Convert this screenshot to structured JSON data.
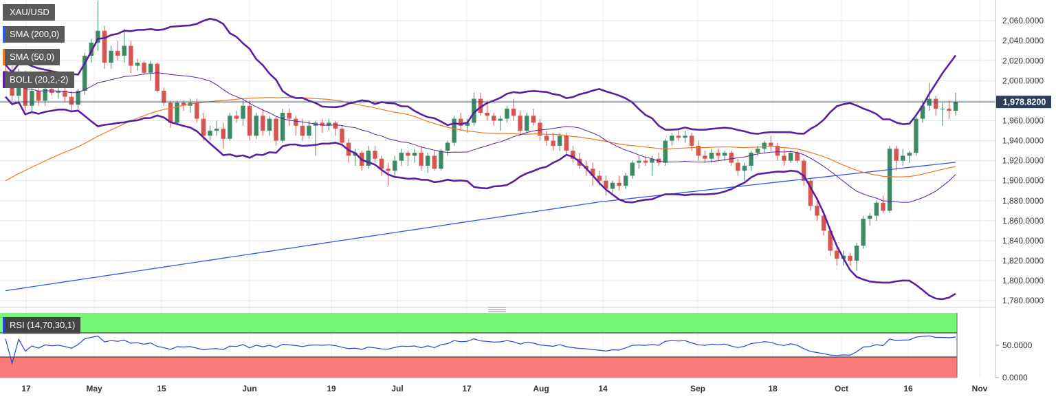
{
  "chart_data": {
    "type": "candlestick",
    "symbol": "XAU/USD",
    "last_price": "1,978.8200",
    "indicators": {
      "sma200": {
        "label": "SMA (200,0)",
        "color": "#3355ee"
      },
      "sma50": {
        "label": "SMA (50,0)",
        "color": "#ee7722"
      },
      "boll": {
        "label": "BOLL (20,2,-2)",
        "color": "#5a1fa0"
      }
    },
    "rsi": {
      "label": "RSI (14,70,30,1)",
      "color": "#2244dd",
      "overbought": 70,
      "oversold": 30,
      "y_ticks": [
        "50.0000",
        "0.0000"
      ]
    },
    "y_ticks": [
      "2,060.0000",
      "2,040.0000",
      "2,020.0000",
      "2,000.0000",
      "1,980.0000",
      "1,960.0000",
      "1,940.0000",
      "1,920.0000",
      "1,900.0000",
      "1,880.0000",
      "1,860.0000",
      "1,840.0000",
      "1,820.0000",
      "1,800.0000",
      "1,780.0000"
    ],
    "x_ticks": [
      "17",
      "May",
      "15",
      "Jun",
      "19",
      "Jul",
      "17",
      "Aug",
      "14",
      "Sep",
      "18",
      "Oct",
      "16",
      "Nov"
    ],
    "ylim": [
      1776,
      2078
    ],
    "candles": [
      {
        "o": 2010,
        "h": 2020,
        "l": 1995,
        "c": 2000
      },
      {
        "o": 2000,
        "h": 2015,
        "l": 1980,
        "c": 1985
      },
      {
        "o": 1985,
        "h": 2012,
        "l": 1978,
        "c": 2008
      },
      {
        "o": 2008,
        "h": 2010,
        "l": 1970,
        "c": 1975
      },
      {
        "o": 1975,
        "h": 1995,
        "l": 1968,
        "c": 1990
      },
      {
        "o": 1990,
        "h": 2000,
        "l": 1975,
        "c": 1980
      },
      {
        "o": 1980,
        "h": 1998,
        "l": 1975,
        "c": 1992
      },
      {
        "o": 1992,
        "h": 2005,
        "l": 1985,
        "c": 1988
      },
      {
        "o": 1988,
        "h": 1995,
        "l": 1982,
        "c": 1990
      },
      {
        "o": 1990,
        "h": 2000,
        "l": 1978,
        "c": 1984
      },
      {
        "o": 1984,
        "h": 1990,
        "l": 1970,
        "c": 1976
      },
      {
        "o": 1976,
        "h": 1992,
        "l": 1972,
        "c": 1990
      },
      {
        "o": 1990,
        "h": 2028,
        "l": 1986,
        "c": 2025
      },
      {
        "o": 2025,
        "h": 2042,
        "l": 2018,
        "c": 2038
      },
      {
        "o": 2038,
        "h": 2080,
        "l": 2030,
        "c": 2050
      },
      {
        "o": 2050,
        "h": 2055,
        "l": 2012,
        "c": 2018
      },
      {
        "o": 2018,
        "h": 2035,
        "l": 2012,
        "c": 2030
      },
      {
        "o": 2030,
        "h": 2040,
        "l": 2020,
        "c": 2025
      },
      {
        "o": 2025,
        "h": 2052,
        "l": 2018,
        "c": 2035
      },
      {
        "o": 2035,
        "h": 2040,
        "l": 2008,
        "c": 2015
      },
      {
        "o": 2015,
        "h": 2022,
        "l": 2010,
        "c": 2018
      },
      {
        "o": 2018,
        "h": 2020,
        "l": 2006,
        "c": 2008
      },
      {
        "o": 2008,
        "h": 2020,
        "l": 2000,
        "c": 2017
      },
      {
        "o": 2017,
        "h": 2018,
        "l": 1988,
        "c": 1990
      },
      {
        "o": 1990,
        "h": 1993,
        "l": 1975,
        "c": 1978
      },
      {
        "o": 1978,
        "h": 1980,
        "l": 1953,
        "c": 1958
      },
      {
        "o": 1958,
        "h": 1980,
        "l": 1955,
        "c": 1978
      },
      {
        "o": 1978,
        "h": 1980,
        "l": 1970,
        "c": 1975
      },
      {
        "o": 1975,
        "h": 1982,
        "l": 1968,
        "c": 1978
      },
      {
        "o": 1978,
        "h": 1982,
        "l": 1958,
        "c": 1962
      },
      {
        "o": 1962,
        "h": 1968,
        "l": 1940,
        "c": 1945
      },
      {
        "o": 1945,
        "h": 1955,
        "l": 1940,
        "c": 1950
      },
      {
        "o": 1950,
        "h": 1960,
        "l": 1945,
        "c": 1952
      },
      {
        "o": 1952,
        "h": 1958,
        "l": 1932,
        "c": 1942
      },
      {
        "o": 1942,
        "h": 1968,
        "l": 1940,
        "c": 1965
      },
      {
        "o": 1965,
        "h": 1970,
        "l": 1958,
        "c": 1962
      },
      {
        "o": 1962,
        "h": 1980,
        "l": 1955,
        "c": 1975
      },
      {
        "o": 1975,
        "h": 1980,
        "l": 1940,
        "c": 1945
      },
      {
        "o": 1945,
        "h": 1968,
        "l": 1942,
        "c": 1965
      },
      {
        "o": 1965,
        "h": 1972,
        "l": 1945,
        "c": 1950
      },
      {
        "o": 1950,
        "h": 1965,
        "l": 1945,
        "c": 1962
      },
      {
        "o": 1962,
        "h": 1965,
        "l": 1935,
        "c": 1940
      },
      {
        "o": 1940,
        "h": 1972,
        "l": 1938,
        "c": 1968
      },
      {
        "o": 1968,
        "h": 1972,
        "l": 1955,
        "c": 1962
      },
      {
        "o": 1962,
        "h": 1965,
        "l": 1945,
        "c": 1955
      },
      {
        "o": 1955,
        "h": 1962,
        "l": 1940,
        "c": 1945
      },
      {
        "o": 1945,
        "h": 1960,
        "l": 1942,
        "c": 1955
      },
      {
        "o": 1955,
        "h": 1960,
        "l": 1925,
        "c": 1958
      },
      {
        "o": 1958,
        "h": 1962,
        "l": 1948,
        "c": 1955
      },
      {
        "o": 1955,
        "h": 1962,
        "l": 1950,
        "c": 1958
      },
      {
        "o": 1958,
        "h": 1960,
        "l": 1945,
        "c": 1952
      },
      {
        "o": 1952,
        "h": 1955,
        "l": 1935,
        "c": 1938
      },
      {
        "o": 1938,
        "h": 1942,
        "l": 1918,
        "c": 1925
      },
      {
        "o": 1925,
        "h": 1932,
        "l": 1915,
        "c": 1928
      },
      {
        "o": 1928,
        "h": 1930,
        "l": 1910,
        "c": 1915
      },
      {
        "o": 1915,
        "h": 1935,
        "l": 1912,
        "c": 1930
      },
      {
        "o": 1930,
        "h": 1935,
        "l": 1918,
        "c": 1922
      },
      {
        "o": 1922,
        "h": 1925,
        "l": 1905,
        "c": 1912
      },
      {
        "o": 1912,
        "h": 1918,
        "l": 1895,
        "c": 1910
      },
      {
        "o": 1910,
        "h": 1925,
        "l": 1905,
        "c": 1920
      },
      {
        "o": 1920,
        "h": 1932,
        "l": 1915,
        "c": 1928
      },
      {
        "o": 1928,
        "h": 1930,
        "l": 1915,
        "c": 1925
      },
      {
        "o": 1925,
        "h": 1932,
        "l": 1918,
        "c": 1928
      },
      {
        "o": 1928,
        "h": 1935,
        "l": 1910,
        "c": 1915
      },
      {
        "o": 1915,
        "h": 1928,
        "l": 1908,
        "c": 1925
      },
      {
        "o": 1925,
        "h": 1930,
        "l": 1910,
        "c": 1912
      },
      {
        "o": 1912,
        "h": 1932,
        "l": 1910,
        "c": 1930
      },
      {
        "o": 1930,
        "h": 1940,
        "l": 1925,
        "c": 1938
      },
      {
        "o": 1938,
        "h": 1965,
        "l": 1935,
        "c": 1962
      },
      {
        "o": 1962,
        "h": 1968,
        "l": 1950,
        "c": 1955
      },
      {
        "o": 1955,
        "h": 1962,
        "l": 1948,
        "c": 1958
      },
      {
        "o": 1958,
        "h": 1988,
        "l": 1955,
        "c": 1982
      },
      {
        "o": 1982,
        "h": 1988,
        "l": 1965,
        "c": 1968
      },
      {
        "o": 1968,
        "h": 1980,
        "l": 1960,
        "c": 1965
      },
      {
        "o": 1965,
        "h": 1968,
        "l": 1955,
        "c": 1960
      },
      {
        "o": 1960,
        "h": 1965,
        "l": 1950,
        "c": 1962
      },
      {
        "o": 1962,
        "h": 1975,
        "l": 1958,
        "c": 1972
      },
      {
        "o": 1972,
        "h": 1982,
        "l": 1960,
        "c": 1965
      },
      {
        "o": 1965,
        "h": 1970,
        "l": 1945,
        "c": 1950
      },
      {
        "o": 1950,
        "h": 1968,
        "l": 1948,
        "c": 1965
      },
      {
        "o": 1965,
        "h": 1972,
        "l": 1955,
        "c": 1958
      },
      {
        "o": 1958,
        "h": 1962,
        "l": 1940,
        "c": 1945
      },
      {
        "o": 1945,
        "h": 1950,
        "l": 1935,
        "c": 1940
      },
      {
        "o": 1940,
        "h": 1948,
        "l": 1930,
        "c": 1935
      },
      {
        "o": 1935,
        "h": 1948,
        "l": 1930,
        "c": 1945
      },
      {
        "o": 1945,
        "h": 1948,
        "l": 1925,
        "c": 1930
      },
      {
        "o": 1930,
        "h": 1935,
        "l": 1918,
        "c": 1922
      },
      {
        "o": 1922,
        "h": 1928,
        "l": 1912,
        "c": 1915
      },
      {
        "o": 1915,
        "h": 1920,
        "l": 1905,
        "c": 1912
      },
      {
        "o": 1912,
        "h": 1918,
        "l": 1895,
        "c": 1905
      },
      {
        "o": 1905,
        "h": 1910,
        "l": 1895,
        "c": 1900
      },
      {
        "o": 1900,
        "h": 1905,
        "l": 1885,
        "c": 1892
      },
      {
        "o": 1892,
        "h": 1900,
        "l": 1888,
        "c": 1898
      },
      {
        "o": 1898,
        "h": 1905,
        "l": 1890,
        "c": 1895
      },
      {
        "o": 1895,
        "h": 1908,
        "l": 1892,
        "c": 1905
      },
      {
        "o": 1905,
        "h": 1920,
        "l": 1902,
        "c": 1918
      },
      {
        "o": 1918,
        "h": 1925,
        "l": 1912,
        "c": 1920
      },
      {
        "o": 1920,
        "h": 1925,
        "l": 1915,
        "c": 1918
      },
      {
        "o": 1918,
        "h": 1925,
        "l": 1905,
        "c": 1922
      },
      {
        "o": 1922,
        "h": 1928,
        "l": 1915,
        "c": 1918
      },
      {
        "o": 1918,
        "h": 1942,
        "l": 1915,
        "c": 1940
      },
      {
        "o": 1940,
        "h": 1948,
        "l": 1935,
        "c": 1945
      },
      {
        "o": 1945,
        "h": 1952,
        "l": 1940,
        "c": 1943
      },
      {
        "o": 1943,
        "h": 1950,
        "l": 1938,
        "c": 1945
      },
      {
        "o": 1945,
        "h": 1948,
        "l": 1930,
        "c": 1935
      },
      {
        "o": 1935,
        "h": 1940,
        "l": 1920,
        "c": 1925
      },
      {
        "o": 1925,
        "h": 1930,
        "l": 1918,
        "c": 1922
      },
      {
        "o": 1922,
        "h": 1932,
        "l": 1918,
        "c": 1928
      },
      {
        "o": 1928,
        "h": 1932,
        "l": 1920,
        "c": 1925
      },
      {
        "o": 1925,
        "h": 1930,
        "l": 1920,
        "c": 1928
      },
      {
        "o": 1928,
        "h": 1930,
        "l": 1915,
        "c": 1918
      },
      {
        "o": 1918,
        "h": 1922,
        "l": 1905,
        "c": 1910
      },
      {
        "o": 1910,
        "h": 1918,
        "l": 1900,
        "c": 1915
      },
      {
        "o": 1915,
        "h": 1930,
        "l": 1910,
        "c": 1928
      },
      {
        "o": 1928,
        "h": 1935,
        "l": 1925,
        "c": 1932
      },
      {
        "o": 1932,
        "h": 1940,
        "l": 1928,
        "c": 1938
      },
      {
        "o": 1938,
        "h": 1945,
        "l": 1930,
        "c": 1935
      },
      {
        "o": 1935,
        "h": 1938,
        "l": 1920,
        "c": 1925
      },
      {
        "o": 1925,
        "h": 1932,
        "l": 1915,
        "c": 1920
      },
      {
        "o": 1920,
        "h": 1930,
        "l": 1918,
        "c": 1928
      },
      {
        "o": 1928,
        "h": 1930,
        "l": 1918,
        "c": 1920
      },
      {
        "o": 1920,
        "h": 1922,
        "l": 1895,
        "c": 1900
      },
      {
        "o": 1900,
        "h": 1902,
        "l": 1870,
        "c": 1875
      },
      {
        "o": 1875,
        "h": 1880,
        "l": 1860,
        "c": 1865
      },
      {
        "o": 1865,
        "h": 1868,
        "l": 1845,
        "c": 1850
      },
      {
        "o": 1850,
        "h": 1852,
        "l": 1825,
        "c": 1830
      },
      {
        "o": 1830,
        "h": 1835,
        "l": 1815,
        "c": 1822
      },
      {
        "o": 1822,
        "h": 1830,
        "l": 1815,
        "c": 1825
      },
      {
        "o": 1825,
        "h": 1828,
        "l": 1815,
        "c": 1820
      },
      {
        "o": 1820,
        "h": 1838,
        "l": 1810,
        "c": 1835
      },
      {
        "o": 1835,
        "h": 1865,
        "l": 1832,
        "c": 1862
      },
      {
        "o": 1862,
        "h": 1868,
        "l": 1855,
        "c": 1865
      },
      {
        "o": 1865,
        "h": 1880,
        "l": 1860,
        "c": 1878
      },
      {
        "o": 1878,
        "h": 1885,
        "l": 1868,
        "c": 1870
      },
      {
        "o": 1870,
        "h": 1935,
        "l": 1868,
        "c": 1932
      },
      {
        "o": 1932,
        "h": 1935,
        "l": 1910,
        "c": 1920
      },
      {
        "o": 1920,
        "h": 1932,
        "l": 1915,
        "c": 1925
      },
      {
        "o": 1925,
        "h": 1930,
        "l": 1918,
        "c": 1928
      },
      {
        "o": 1928,
        "h": 1965,
        "l": 1925,
        "c": 1962
      },
      {
        "o": 1962,
        "h": 1980,
        "l": 1958,
        "c": 1975
      },
      {
        "o": 1975,
        "h": 1998,
        "l": 1970,
        "c": 1982
      },
      {
        "o": 1982,
        "h": 1985,
        "l": 1965,
        "c": 1972
      },
      {
        "o": 1972,
        "h": 1978,
        "l": 1955,
        "c": 1972
      },
      {
        "o": 1972,
        "h": 1980,
        "l": 1962,
        "c": 1970
      },
      {
        "o": 1970,
        "h": 1988,
        "l": 1965,
        "c": 1978.82
      }
    ]
  }
}
